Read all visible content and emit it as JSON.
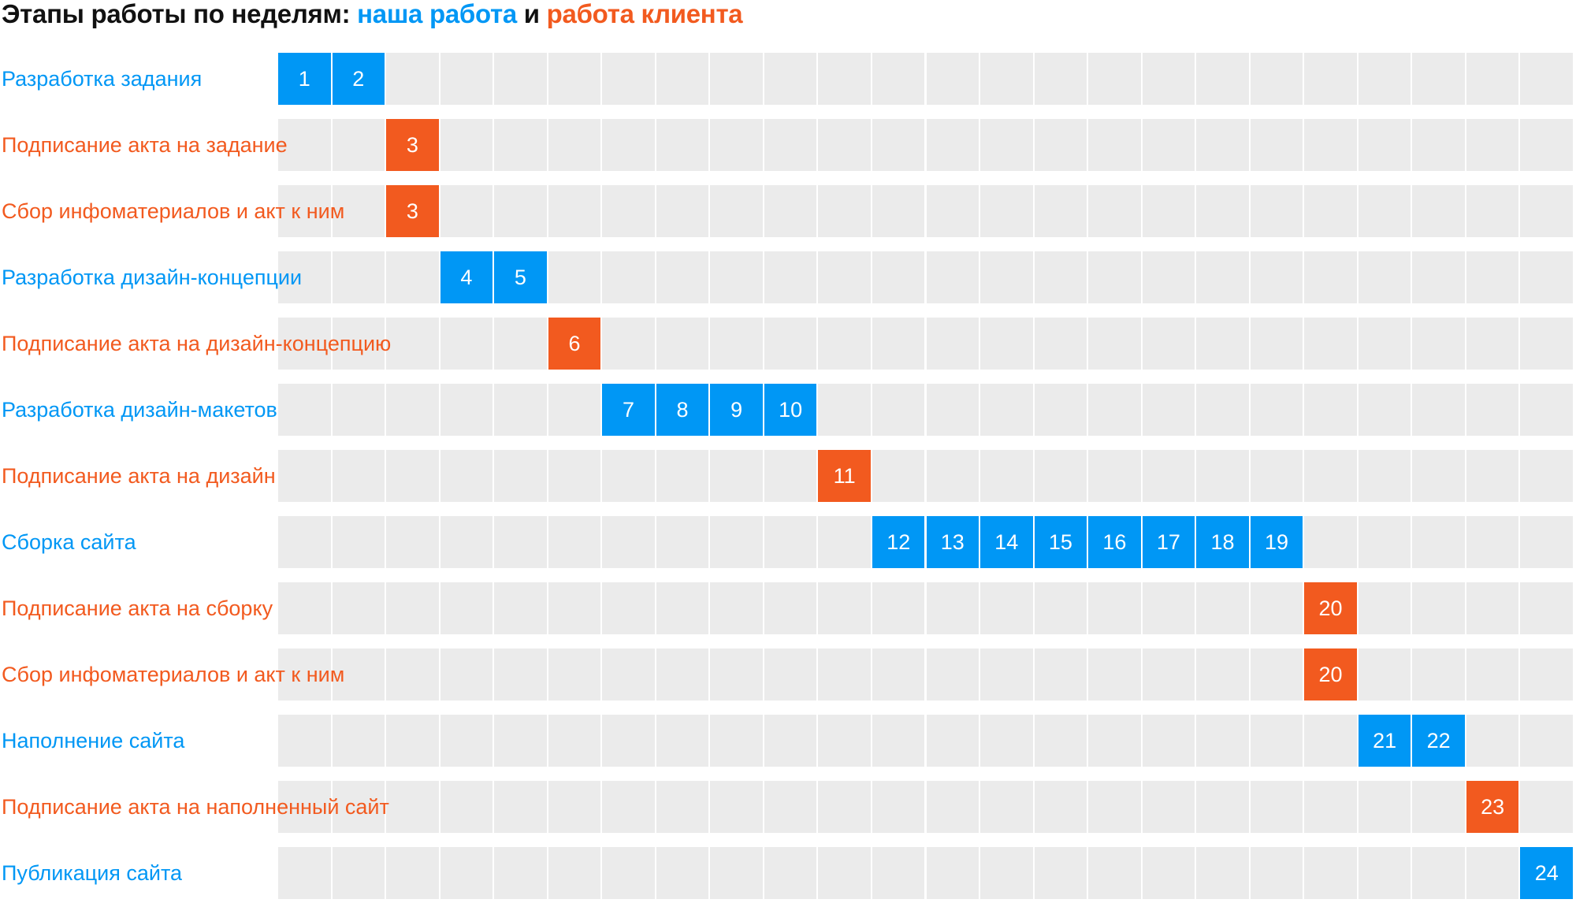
{
  "title": {
    "prefix": "Этапы работы по неделям:",
    "our_work": "наша работа",
    "connector": "и",
    "client_work": "работа клиента"
  },
  "colors": {
    "ours": "#0097f5",
    "client": "#f25a1f",
    "grid": "#ebebeb",
    "title": "#111111"
  },
  "chart_data": {
    "type": "gantt",
    "x_unit": "week",
    "xlim": [
      1,
      24
    ],
    "series": [
      {
        "name": "наша работа",
        "color": "#0097f5"
      },
      {
        "name": "работа клиента",
        "color": "#f25a1f"
      }
    ],
    "tasks": [
      {
        "label": "Разработка задания",
        "owner": "ours",
        "weeks": [
          1,
          2
        ]
      },
      {
        "label": "Подписание акта на задание",
        "owner": "client",
        "weeks": [
          3
        ]
      },
      {
        "label": "Сбор инфоматериалов и акт к ним",
        "owner": "client",
        "weeks": [
          3
        ]
      },
      {
        "label": "Разработка дизайн-концепции",
        "owner": "ours",
        "weeks": [
          4,
          5
        ]
      },
      {
        "label": "Подписание акта на дизайн-концепцию",
        "owner": "client",
        "weeks": [
          6
        ]
      },
      {
        "label": "Разработка дизайн-макетов",
        "owner": "ours",
        "weeks": [
          7,
          8,
          9,
          10
        ]
      },
      {
        "label": "Подписание акта на дизайн",
        "owner": "client",
        "weeks": [
          11
        ]
      },
      {
        "label": "Сборка сайта",
        "owner": "ours",
        "weeks": [
          12,
          13,
          14,
          15,
          16,
          17,
          18,
          19
        ]
      },
      {
        "label": "Подписание акта на сборку",
        "owner": "client",
        "weeks": [
          20
        ]
      },
      {
        "label": "Сбор инфоматериалов и акт к ним",
        "owner": "client",
        "weeks": [
          20
        ]
      },
      {
        "label": "Наполнение сайта",
        "owner": "ours",
        "weeks": [
          21,
          22
        ]
      },
      {
        "label": "Подписание акта на наполненный сайт",
        "owner": "client",
        "weeks": [
          23
        ]
      },
      {
        "label": "Публикация сайта",
        "owner": "ours",
        "weeks": [
          24
        ]
      }
    ]
  }
}
